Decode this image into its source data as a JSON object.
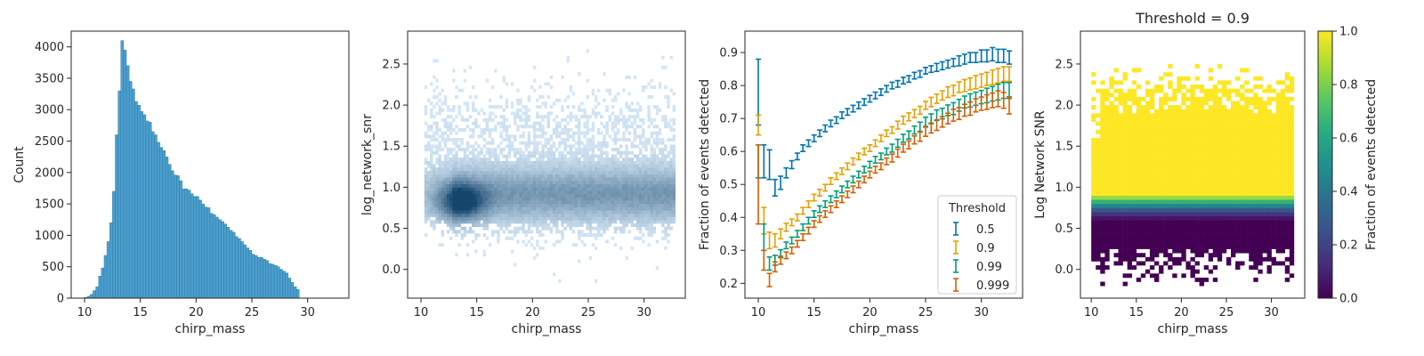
{
  "chart_data": [
    {
      "type": "bar",
      "xlabel": "chirp_mass",
      "ylabel": "Count",
      "xlim": [
        8.8,
        33.7
      ],
      "ylim": [
        0,
        4250
      ],
      "xticks": [
        10,
        15,
        20,
        25,
        30
      ],
      "yticks": [
        0,
        500,
        1000,
        1500,
        2000,
        2500,
        3000,
        3500,
        4000
      ],
      "bar_color": "#4a9fcf",
      "bin_edges_start": 10.0,
      "bin_width": 0.25,
      "values": [
        10,
        30,
        60,
        120,
        180,
        350,
        480,
        680,
        900,
        1200,
        1700,
        2600,
        3300,
        4100,
        3950,
        3700,
        3450,
        3330,
        3130,
        3070,
        2970,
        2920,
        2820,
        2800,
        2650,
        2600,
        2480,
        2400,
        2350,
        2250,
        2130,
        2030,
        1960,
        1950,
        1870,
        1740,
        1740,
        1720,
        1660,
        1620,
        1620,
        1560,
        1500,
        1450,
        1440,
        1350,
        1330,
        1290,
        1250,
        1220,
        1180,
        1130,
        1080,
        1050,
        980,
        950,
        900,
        850,
        800,
        760,
        700,
        680,
        650,
        650,
        620,
        600,
        550,
        540,
        520,
        500,
        460,
        430,
        400,
        320,
        250,
        180,
        140
      ]
    },
    {
      "type": "heatmap",
      "xlabel": "chirp_mass",
      "ylabel": "log_network_snr",
      "xlim": [
        8.8,
        33.7
      ],
      "ylim": [
        -0.35,
        2.9
      ],
      "xticks": [
        10,
        15,
        20,
        25,
        30
      ],
      "yticks": [
        0.0,
        0.5,
        1.0,
        1.5,
        2.0,
        2.5
      ],
      "ytick_labels": [
        "0.0",
        "0.5",
        "1.0",
        "1.5",
        "2.0",
        "2.5"
      ],
      "description_bins": {
        "x_start": 10.3,
        "x_end": 32.7,
        "core_center_x": 13.5,
        "core_center_y": 0.8,
        "density_center_y": 0.9
      },
      "color_low": "#d5e7f7",
      "color_high": "#14456b"
    },
    {
      "type": "scatter",
      "xlabel": "chirp_mass",
      "ylabel": "Fraction of events detected",
      "xlim": [
        8.8,
        33.7
      ],
      "ylim": [
        0.155,
        0.965
      ],
      "xticks": [
        10,
        15,
        20,
        25,
        30
      ],
      "yticks": [
        0.2,
        0.3,
        0.4,
        0.5,
        0.6,
        0.7,
        0.8,
        0.9
      ],
      "ytick_labels": [
        "0.2",
        "0.3",
        "0.4",
        "0.5",
        "0.6",
        "0.7",
        "0.8",
        "0.9"
      ],
      "legend": {
        "title": "Threshold",
        "position": "lower right"
      },
      "x": [
        10.0,
        10.5,
        11.0,
        11.5,
        12.0,
        12.5,
        13.0,
        13.5,
        14.0,
        14.5,
        15.0,
        15.5,
        16.0,
        16.5,
        17.0,
        17.5,
        18.0,
        18.5,
        19.0,
        19.5,
        20.0,
        20.5,
        21.0,
        21.5,
        22.0,
        22.5,
        23.0,
        23.5,
        24.0,
        24.5,
        25.0,
        25.5,
        26.0,
        26.5,
        27.0,
        27.5,
        28.0,
        28.5,
        29.0,
        29.5,
        30.0,
        30.5,
        31.0,
        31.5,
        32.0,
        32.5
      ],
      "series": [
        {
          "name": "0.5",
          "color": "#0072b2",
          "y": [
            0.78,
            0.57,
            0.56,
            0.49,
            0.505,
            0.535,
            0.56,
            0.585,
            0.61,
            0.625,
            0.64,
            0.655,
            0.67,
            0.685,
            0.695,
            0.71,
            0.72,
            0.73,
            0.74,
            0.75,
            0.76,
            0.77,
            0.78,
            0.79,
            0.8,
            0.805,
            0.815,
            0.82,
            0.83,
            0.835,
            0.845,
            0.85,
            0.855,
            0.86,
            0.865,
            0.87,
            0.875,
            0.88,
            0.885,
            0.885,
            0.89,
            0.89,
            0.895,
            0.89,
            0.89,
            0.885
          ],
          "err": [
            0.1,
            0.05,
            0.045,
            0.025,
            0.02,
            0.015,
            0.012,
            0.01,
            0.01,
            0.01,
            0.01,
            0.01,
            0.01,
            0.01,
            0.01,
            0.01,
            0.01,
            0.01,
            0.01,
            0.01,
            0.01,
            0.01,
            0.01,
            0.01,
            0.01,
            0.01,
            0.01,
            0.01,
            0.01,
            0.01,
            0.01,
            0.01,
            0.012,
            0.012,
            0.012,
            0.012,
            0.015,
            0.015,
            0.015,
            0.015,
            0.018,
            0.018,
            0.02,
            0.02,
            0.02,
            0.02
          ]
        },
        {
          "name": "0.9",
          "color": "#e69f00",
          "y": [
            0.68,
            0.39,
            0.33,
            0.33,
            0.35,
            0.37,
            0.385,
            0.4,
            0.42,
            0.44,
            0.46,
            0.475,
            0.49,
            0.51,
            0.525,
            0.54,
            0.555,
            0.57,
            0.585,
            0.6,
            0.61,
            0.625,
            0.64,
            0.655,
            0.665,
            0.68,
            0.695,
            0.705,
            0.715,
            0.725,
            0.74,
            0.75,
            0.76,
            0.77,
            0.78,
            0.785,
            0.795,
            0.8,
            0.805,
            0.81,
            0.815,
            0.82,
            0.825,
            0.83,
            0.835,
            0.835
          ],
          "err": [
            0.03,
            0.04,
            0.025,
            0.02,
            0.015,
            0.012,
            0.01,
            0.01,
            0.01,
            0.01,
            0.01,
            0.01,
            0.01,
            0.01,
            0.01,
            0.01,
            0.01,
            0.01,
            0.01,
            0.01,
            0.01,
            0.01,
            0.01,
            0.01,
            0.01,
            0.012,
            0.012,
            0.012,
            0.012,
            0.012,
            0.012,
            0.014,
            0.014,
            0.014,
            0.016,
            0.016,
            0.016,
            0.018,
            0.018,
            0.02,
            0.02,
            0.02,
            0.022,
            0.022,
            0.022,
            0.022
          ]
        },
        {
          "name": "0.99",
          "color": "#009e73",
          "y": [
            0.57,
            0.34,
            0.26,
            0.27,
            0.29,
            0.315,
            0.33,
            0.35,
            0.37,
            0.39,
            0.41,
            0.425,
            0.44,
            0.455,
            0.47,
            0.485,
            0.5,
            0.515,
            0.53,
            0.545,
            0.56,
            0.575,
            0.585,
            0.6,
            0.61,
            0.625,
            0.64,
            0.65,
            0.665,
            0.675,
            0.69,
            0.7,
            0.71,
            0.715,
            0.725,
            0.73,
            0.74,
            0.75,
            0.755,
            0.76,
            0.765,
            0.77,
            0.775,
            0.78,
            0.785,
            0.785
          ],
          "err": [
            0.05,
            0.04,
            0.02,
            0.015,
            0.012,
            0.01,
            0.01,
            0.01,
            0.01,
            0.01,
            0.01,
            0.01,
            0.01,
            0.01,
            0.01,
            0.01,
            0.01,
            0.01,
            0.01,
            0.01,
            0.01,
            0.01,
            0.01,
            0.01,
            0.012,
            0.012,
            0.012,
            0.012,
            0.012,
            0.014,
            0.014,
            0.014,
            0.016,
            0.016,
            0.016,
            0.018,
            0.018,
            0.018,
            0.02,
            0.02,
            0.02,
            0.022,
            0.022,
            0.024,
            0.024,
            0.024
          ]
        },
        {
          "name": "0.999",
          "color": "#d55e00",
          "y": [
            0.5,
            0.27,
            0.21,
            0.25,
            0.27,
            0.285,
            0.3,
            0.32,
            0.34,
            0.36,
            0.38,
            0.395,
            0.41,
            0.425,
            0.44,
            0.455,
            0.47,
            0.485,
            0.5,
            0.515,
            0.53,
            0.545,
            0.555,
            0.57,
            0.58,
            0.595,
            0.61,
            0.62,
            0.635,
            0.645,
            0.66,
            0.67,
            0.68,
            0.69,
            0.7,
            0.71,
            0.715,
            0.725,
            0.73,
            0.74,
            0.745,
            0.75,
            0.755,
            0.76,
            0.755,
            0.74
          ],
          "err": [
            0.12,
            0.03,
            0.02,
            0.015,
            0.012,
            0.01,
            0.01,
            0.01,
            0.01,
            0.01,
            0.01,
            0.01,
            0.01,
            0.01,
            0.01,
            0.01,
            0.01,
            0.01,
            0.01,
            0.01,
            0.01,
            0.01,
            0.01,
            0.01,
            0.012,
            0.012,
            0.012,
            0.012,
            0.012,
            0.014,
            0.014,
            0.014,
            0.016,
            0.016,
            0.016,
            0.018,
            0.018,
            0.018,
            0.02,
            0.02,
            0.02,
            0.022,
            0.022,
            0.024,
            0.024,
            0.026
          ]
        }
      ]
    },
    {
      "type": "heatmap",
      "title": "Threshold = 0.9",
      "xlabel": "chirp_mass",
      "ylabel": "Log Network SNR",
      "xlim": [
        8.8,
        33.7
      ],
      "ylim": [
        -0.35,
        2.9
      ],
      "xticks": [
        10,
        15,
        20,
        25,
        30
      ],
      "yticks": [
        0.0,
        0.5,
        1.0,
        1.5,
        2.0,
        2.5
      ],
      "ytick_labels": [
        "0.0",
        "0.5",
        "1.0",
        "1.5",
        "2.0",
        "2.5"
      ],
      "colorbar": {
        "label": "Fraction of events detected",
        "min": 0.0,
        "max": 1.0,
        "ticks": [
          0.0,
          0.2,
          0.4,
          0.6,
          0.8,
          1.0
        ],
        "tick_labels": [
          "0.0",
          "0.2",
          "0.4",
          "0.6",
          "0.8",
          "1.0"
        ],
        "colormap": "viridis"
      },
      "transition_rows": [
        {
          "y": 0.875,
          "value": 0.85
        },
        {
          "y": 0.825,
          "value": 0.65
        },
        {
          "y": 0.775,
          "value": 0.45
        },
        {
          "y": 0.725,
          "value": 0.28
        },
        {
          "y": 0.675,
          "value": 0.15
        },
        {
          "y": 0.625,
          "value": 0.06
        }
      ]
    }
  ]
}
